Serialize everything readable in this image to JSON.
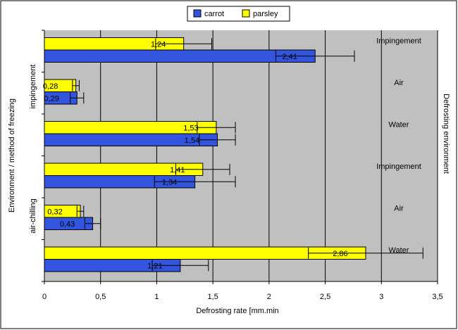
{
  "chart_data": {
    "type": "bar",
    "orientation": "horizontal",
    "xlabel": "Defrosting rate [mm.min",
    "ylabel": "Environment / method of freezing",
    "right_label": "Defrosting environment",
    "xlim": [
      0,
      3.5
    ],
    "x_ticks": [
      "0",
      "0,5",
      "1",
      "1,5",
      "2",
      "2,5",
      "3",
      "3,5"
    ],
    "grid": true,
    "legend_position": "top",
    "groups": [
      {
        "freezing": "impingement",
        "environment": "Impingement",
        "parsley": {
          "value": 1.24,
          "label": "1,24",
          "err": 0.25
        },
        "carrot": {
          "value": 2.41,
          "label": "2,41",
          "err": 0.35
        }
      },
      {
        "freezing": "impingement",
        "environment": "Air",
        "parsley": {
          "value": 0.28,
          "label": "0,28",
          "err": 0.03
        },
        "carrot": {
          "value": 0.29,
          "label": "0,29",
          "err": 0.06
        }
      },
      {
        "freezing": "impingement",
        "environment": "Water",
        "parsley": {
          "value": 1.53,
          "label": "1,53",
          "err": 0.17
        },
        "carrot": {
          "value": 1.54,
          "label": "1,54",
          "err": 0.16
        }
      },
      {
        "freezing": "air-chilling",
        "environment": "Impingement",
        "parsley": {
          "value": 1.41,
          "label": "1,41",
          "err": 0.24
        },
        "carrot": {
          "value": 1.34,
          "label": "1,34",
          "err": 0.36
        }
      },
      {
        "freezing": "air-chilling",
        "environment": "Air",
        "parsley": {
          "value": 0.32,
          "label": "0,32",
          "err": 0.03
        },
        "carrot": {
          "value": 0.43,
          "label": "0,43",
          "err": 0.07
        }
      },
      {
        "freezing": "air-chilling",
        "environment": "Water",
        "parsley": {
          "value": 2.86,
          "label": "2,86",
          "err": 0.51
        },
        "carrot": {
          "value": 1.21,
          "label": "1,21",
          "err": 0.25
        }
      }
    ],
    "freezing_labels": [
      "impingement",
      "air-chilling"
    ],
    "series": [
      {
        "key": "carrot",
        "name": "carrot",
        "color": "#3355dd"
      },
      {
        "key": "parsley",
        "name": "parsley",
        "color": "#ffff00"
      }
    ],
    "colors": {
      "plot_bg": "#c0c0c0",
      "grid": "#000000"
    }
  }
}
